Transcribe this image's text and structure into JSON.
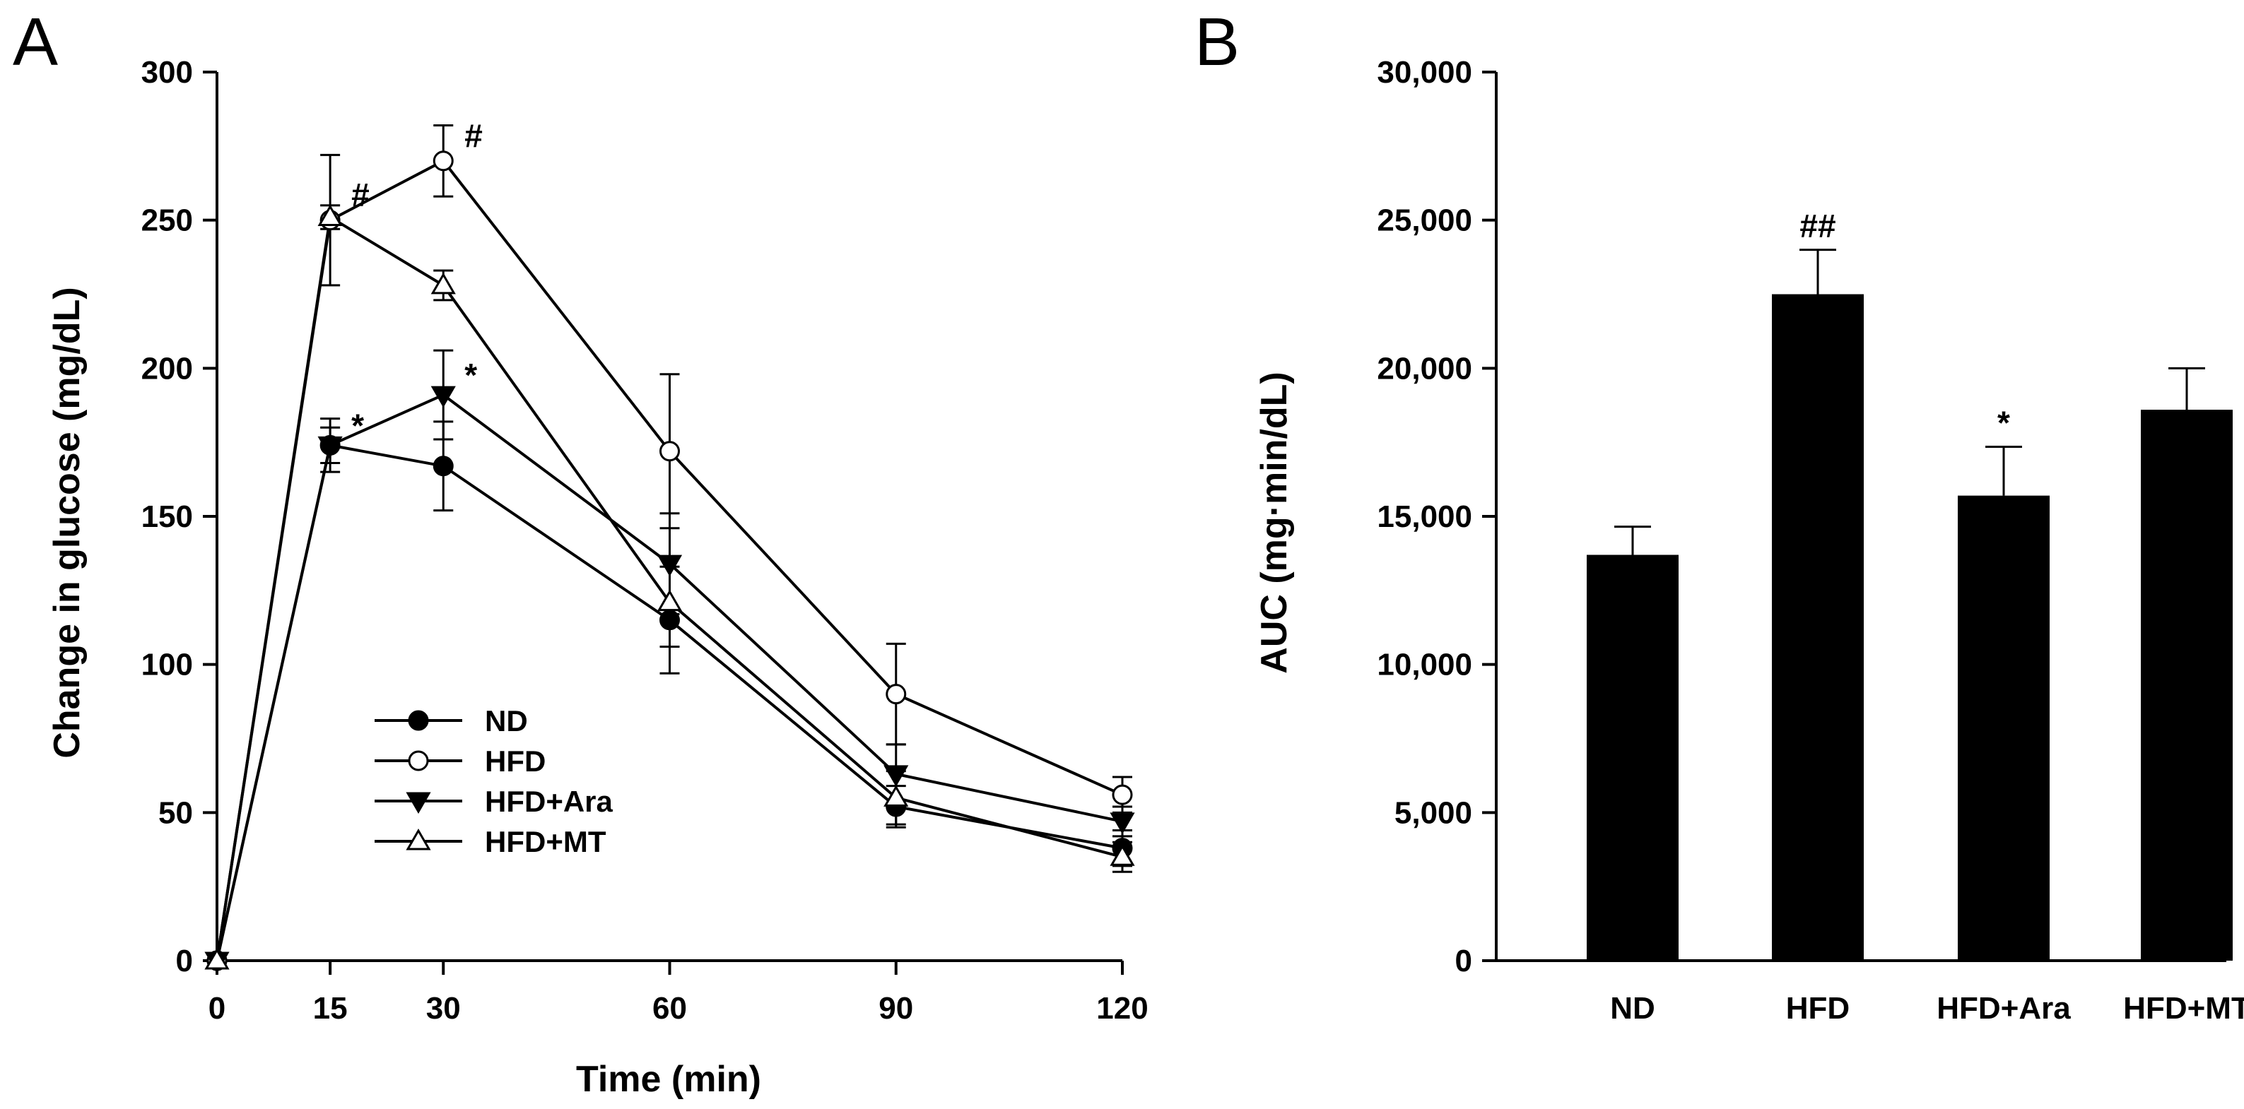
{
  "chart_data": [
    {
      "panel": "A",
      "type": "line",
      "xlabel": "Time (min)",
      "ylabel": "Change in glucose (mg/dL)",
      "x": [
        0,
        15,
        30,
        60,
        90,
        120
      ],
      "x_ticks": [
        "0",
        "15",
        "30",
        "60",
        "90",
        "120"
      ],
      "xlim": [
        0,
        120
      ],
      "ylim": [
        0,
        300
      ],
      "y_ticks": [
        "0",
        "50",
        "100",
        "150",
        "200",
        "250",
        "300"
      ],
      "legend_position": "lower-left",
      "series": [
        {
          "name": "ND",
          "marker": "circle-filled",
          "values": [
            0,
            174,
            167,
            115,
            52,
            38
          ],
          "errors": [
            0,
            9,
            15,
            18,
            7,
            6
          ]
        },
        {
          "name": "HFD",
          "marker": "circle-open",
          "values": [
            0,
            250,
            270,
            172,
            90,
            56
          ],
          "errors": [
            0,
            22,
            12,
            26,
            17,
            6
          ]
        },
        {
          "name": "HFD+Ara",
          "marker": "triangle-down-filled",
          "values": [
            0,
            174,
            191,
            134,
            63,
            47
          ],
          "errors": [
            0,
            6,
            15,
            17,
            10,
            5
          ]
        },
        {
          "name": "HFD+MT",
          "marker": "triangle-up-open",
          "values": [
            0,
            251,
            228,
            121,
            55,
            35
          ],
          "errors": [
            0,
            4,
            5,
            15,
            9,
            5
          ]
        }
      ],
      "annotations": [
        {
          "text": "#",
          "x": 15,
          "y": 250
        },
        {
          "text": "#",
          "x": 30,
          "y": 270
        },
        {
          "text": "*",
          "x": 15,
          "y": 174
        },
        {
          "text": "*",
          "x": 30,
          "y": 191
        }
      ]
    },
    {
      "panel": "B",
      "type": "bar",
      "ylabel": "AUC (mg·min/dL)",
      "categories": [
        "ND",
        "HFD",
        "HFD+Ara",
        "HFD+MT"
      ],
      "values": [
        13700,
        22500,
        15700,
        18600
      ],
      "errors": [
        950,
        1500,
        1650,
        1400
      ],
      "ylim": [
        0,
        30000
      ],
      "y_ticks": [
        "0",
        "5,000",
        "10,000",
        "15,000",
        "20,000",
        "25,000",
        "30,000"
      ],
      "annotations": [
        {
          "text": "##",
          "category": "HFD"
        },
        {
          "text": "*",
          "category": "HFD+Ara"
        }
      ]
    }
  ]
}
